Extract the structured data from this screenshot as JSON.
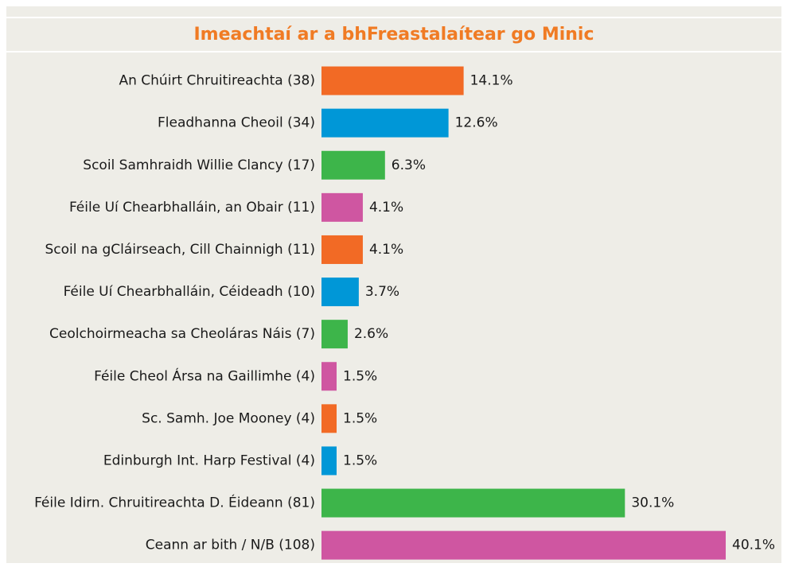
{
  "chart_data": {
    "type": "barh",
    "title": "Imeachtaí ar a bhFreastalaítear go Minic",
    "categories": [
      "An Chúirt Chruitireachta (38)",
      "Fleadhanna Cheoil (34)",
      "Scoil Samhraidh Willie Clancy (17)",
      "Féile Uí Chearbhalláin, an Obair (11)",
      "Scoil na gCláirseach, Cill Chainnigh (11)",
      "Féile Uí Chearbhalláin, Céideadh (10)",
      "Ceolchoirmeacha sa Cheoláras Náis (7)",
      "Féile Cheol Ársa na Gaillimhe (4)",
      "Sc. Samh. Joe Mooney (4)",
      "Edinburgh Int. Harp Festival (4)",
      "Féile Idirn. Chruitireachta D. Éideann (81)",
      "Ceann ar bith / N/B (108)"
    ],
    "values": [
      14.1,
      12.6,
      6.3,
      4.1,
      4.1,
      3.7,
      2.6,
      1.5,
      1.5,
      1.5,
      30.1,
      40.1
    ],
    "value_labels": [
      "14.1%",
      "12.6%",
      "6.3%",
      "4.1%",
      "4.1%",
      "3.7%",
      "2.6%",
      "1.5%",
      "1.5%",
      "1.5%",
      "30.1%",
      "40.1%"
    ],
    "colors": [
      "#f26a25",
      "#0097d7",
      "#3db54a",
      "#cf56a1",
      "#f26a25",
      "#0097d7",
      "#3db54a",
      "#cf56a1",
      "#f26a25",
      "#0097d7",
      "#3db54a",
      "#cf56a1"
    ]
  }
}
